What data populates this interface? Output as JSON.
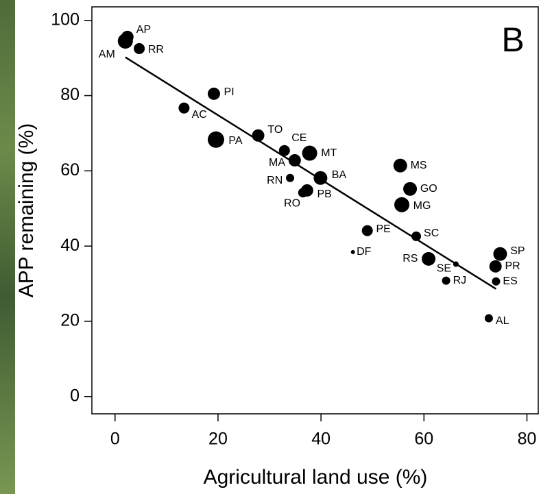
{
  "chart_data": {
    "type": "scatter",
    "panel_label": "B",
    "x_label": "Agricultural land use (%)",
    "y_label": "APP remaining (%)",
    "labels": [
      "AP",
      "AM",
      "RR",
      "PI",
      "AC",
      "PA",
      "TO",
      "CE",
      "MT",
      "MA",
      "RN",
      "BA",
      "PB",
      "RO",
      "MS",
      "GO",
      "MG",
      "PE",
      "DF",
      "SC",
      "RS",
      "SE",
      "RJ",
      "SP",
      "PR",
      "ES",
      "AL"
    ],
    "x": [
      2.4,
      2.0,
      4.7,
      19.2,
      13.4,
      19.6,
      27.8,
      32.9,
      37.8,
      34.9,
      34.0,
      39.9,
      37.3,
      36.5,
      55.4,
      57.3,
      55.7,
      49.0,
      46.2,
      58.5,
      60.9,
      66.2,
      64.3,
      74.8,
      73.9,
      74.0,
      72.6
    ],
    "y": [
      95.6,
      94.5,
      92.5,
      80.5,
      76.7,
      68.3,
      69.4,
      65.4,
      64.7,
      62.8,
      58.1,
      58.1,
      54.8,
      54.2,
      61.4,
      55.2,
      51.0,
      44.1,
      38.4,
      42.6,
      36.6,
      35.2,
      30.8,
      37.9,
      34.6,
      30.6,
      20.8
    ],
    "sizes": [
      9,
      11,
      8,
      9,
      8,
      12,
      9,
      8,
      11,
      9,
      6,
      10,
      9,
      7,
      10,
      10,
      11,
      8,
      3,
      7,
      10,
      4,
      6,
      10,
      9,
      6,
      6
    ],
    "color": "#000000",
    "trend_line": {
      "x": [
        2,
        74
      ],
      "y": [
        90.2,
        28.6
      ]
    },
    "xlim": [
      -4.5,
      82.2
    ],
    "ylim": [
      -4.6,
      103.6
    ],
    "xticks": [
      0,
      20,
      40,
      60,
      80
    ],
    "yticks": [
      0,
      20,
      40,
      60,
      80,
      100
    ]
  }
}
